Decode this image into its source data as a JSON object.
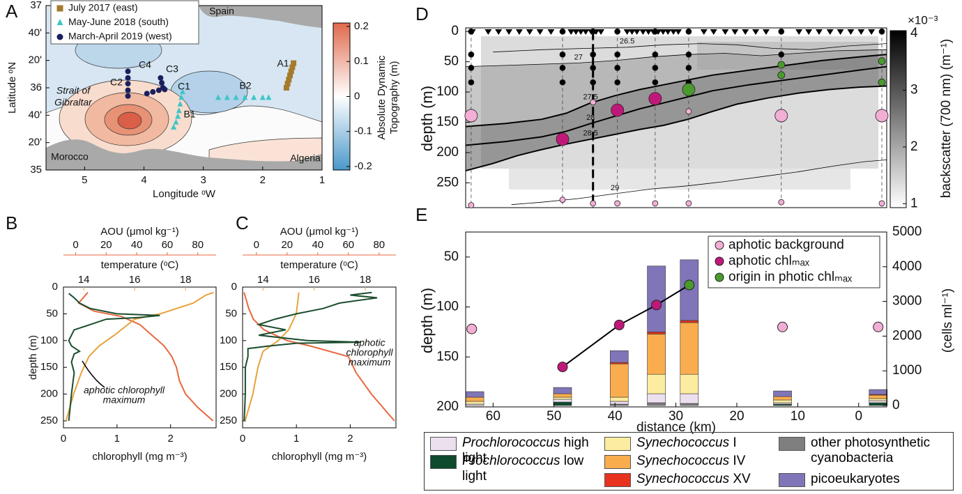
{
  "chart_data": [
    {
      "type": "map",
      "label": "A",
      "xlabel": "Longitude ᵒW",
      "ylabel": "Latitude ᵒN",
      "xlim": [
        5.65,
        1
      ],
      "ylim": [
        35,
        37
      ],
      "xticks": [
        5,
        4,
        3,
        2,
        1
      ],
      "yticks": [
        35,
        {
          "value": 35.3333,
          "label": "20'"
        },
        {
          "value": 35.6667,
          "label": "40'"
        },
        36,
        {
          "value": 36.3333,
          "label": "20'"
        },
        {
          "value": 36.6667,
          "label": "40'"
        },
        37
      ],
      "colorbar": {
        "label": [
          "Absolute Dynamic",
          "Topography (m)"
        ],
        "lim": [
          -0.21,
          0.21
        ],
        "ticks": [
          -0.2,
          -0.1,
          0,
          0.1,
          0.2
        ]
      },
      "places": [
        "Spain",
        "Morocco",
        "Algeria",
        "Strait of",
        "Gibraltar"
      ],
      "stations": [
        "A1",
        "B1",
        "B2",
        "C1",
        "C2",
        "C3",
        "C4"
      ],
      "series": [
        {
          "name": "July 2017 (east)",
          "color": "#a57a2c",
          "marker": "square",
          "x": [
            1.48,
            1.5,
            1.52,
            1.54,
            1.56,
            1.58,
            1.6
          ],
          "y": [
            36.3,
            36.25,
            36.2,
            36.15,
            36.1,
            36.05,
            36.0
          ]
        },
        {
          "name": "May-June 2018 (south)",
          "color": "#3cc6c8",
          "marker": "triangle",
          "x": [
            3.35,
            3.37,
            3.39,
            3.41,
            3.43,
            3.46,
            3.5,
            2.75,
            2.6,
            2.45,
            2.3,
            2.15,
            2.0,
            1.9
          ],
          "y": [
            35.95,
            35.88,
            35.8,
            35.72,
            35.65,
            35.58,
            35.52,
            35.88,
            35.88,
            35.88,
            35.88,
            35.88,
            35.88,
            35.88
          ]
        },
        {
          "name": "March-April 2019 (west)",
          "color": "#1a1f5e",
          "marker": "circle",
          "x": [
            4.27,
            4.27,
            4.27,
            4.27,
            4.27,
            3.95,
            3.85,
            3.75,
            3.65,
            3.72,
            3.7,
            3.68
          ],
          "y": [
            36.2,
            36.12,
            36.05,
            35.97,
            35.9,
            35.93,
            35.95,
            35.97,
            35.98,
            36.12,
            36.06,
            36.0
          ]
        }
      ]
    },
    {
      "type": "profile",
      "label": "B",
      "ylabel": "depth (m)",
      "ylim": [
        0,
        263
      ],
      "yticks": [
        0,
        50,
        100,
        150,
        200,
        250
      ],
      "xlabel": "chlorophyll (mg m⁻³)",
      "xlim": [
        0,
        2.85
      ],
      "xticks": [
        0,
        1,
        2
      ],
      "x2label": "temperature (ᵒC)",
      "x2lim": [
        13.2,
        19.2
      ],
      "x2ticks": [
        14,
        16,
        18
      ],
      "x3label": "AOU (μmol kg⁻¹)",
      "x3lim": [
        -8,
        92
      ],
      "x3ticks": [
        0,
        20,
        40,
        60,
        80
      ],
      "annotation": [
        "aphotic chlorophyll",
        "maximum"
      ],
      "series": [
        {
          "color": "#e8673e",
          "axis": "x3",
          "x": [
            8,
            2,
            12,
            30,
            42,
            50,
            58,
            63,
            66,
            68,
            72,
            80,
            90
          ],
          "y": [
            10,
            30,
            45,
            55,
            70,
            90,
            110,
            130,
            150,
            175,
            200,
            225,
            250
          ]
        },
        {
          "color": "#e8a23a",
          "axis": "x2",
          "x": [
            19.1,
            18.8,
            18.3,
            17.0,
            16.0,
            15.6,
            15.2,
            14.6,
            14.2,
            13.9,
            13.6,
            13.3
          ],
          "y": [
            10,
            15,
            30,
            50,
            60,
            75,
            90,
            110,
            130,
            160,
            200,
            250
          ]
        },
        {
          "color": "#1b4d2e",
          "axis": "x",
          "x": [
            0.1,
            0.2,
            0.3,
            0.5,
            1.0,
            1.8,
            1.4,
            0.8,
            0.5,
            0.2,
            0.15,
            0.1,
            0.15,
            0.3,
            0.2,
            0.15,
            0.2,
            0.15,
            0.1
          ],
          "y": [
            12,
            20,
            30,
            40,
            50,
            53,
            57,
            60,
            70,
            80,
            90,
            100,
            110,
            120,
            125,
            140,
            160,
            200,
            250
          ]
        }
      ]
    },
    {
      "type": "profile",
      "label": "C",
      "ylim": [
        0,
        263
      ],
      "yticks": [
        0,
        50,
        100,
        150,
        200,
        250
      ],
      "xlabel": "chlorophyll (mg m⁻³)",
      "xlim": [
        0,
        2.85
      ],
      "xticks": [
        0,
        1,
        2
      ],
      "x2label": "temperature (ᵒC)",
      "x2lim": [
        13.2,
        19.2
      ],
      "x2ticks": [
        14,
        16,
        18
      ],
      "x3label": "AOU (μmol kg⁻¹)",
      "x3lim": [
        -9,
        91
      ],
      "x3ticks": [
        0,
        20,
        40,
        60,
        80
      ],
      "annotation": [
        "aphotic",
        "chlorophyll",
        "maximum"
      ],
      "series": [
        {
          "color": "#e8673e",
          "axis": "x3",
          "x": [
            -8,
            -7,
            -5,
            -2,
            5,
            20,
            35,
            60,
            65,
            75,
            90
          ],
          "y": [
            10,
            20,
            40,
            60,
            80,
            100,
            110,
            130,
            160,
            200,
            250
          ]
        },
        {
          "color": "#e8a23a",
          "axis": "x2",
          "x": [
            15.4,
            15.3,
            15.0,
            14.6,
            14.0,
            13.8,
            13.6,
            13.3
          ],
          "y": [
            10,
            50,
            80,
            100,
            120,
            150,
            200,
            250
          ]
        },
        {
          "color": "#1b4d2e",
          "axis": "x",
          "x": [
            2.4,
            2.0,
            2.5,
            1.8,
            1.5,
            1.0,
            0.6,
            0.3,
            0.8,
            0.3,
            1.2,
            2.2,
            1.0,
            0.5,
            0.1,
            0.1,
            0.05,
            0.05,
            0.03
          ],
          "y": [
            10,
            15,
            20,
            30,
            40,
            50,
            60,
            70,
            80,
            90,
            100,
            103,
            105,
            110,
            115,
            130,
            150,
            200,
            250
          ]
        }
      ]
    },
    {
      "type": "section",
      "label": "D",
      "ylabel": "depth (m)",
      "xlim": [
        64.5,
        -4.6
      ],
      "ylim": [
        -6,
        291
      ],
      "yticks": [
        0,
        50,
        100,
        150,
        200,
        250
      ],
      "colorbar": {
        "label": "backscatter (700 nm) (m⁻¹)",
        "exponent": "×10⁻³",
        "lim": [
          0.93,
          4.05
        ],
        "ticks": [
          1,
          2,
          3,
          4
        ]
      },
      "profiles": [
        63.4,
        60.8,
        59.1,
        57.4,
        55.7,
        54.0,
        52.3,
        50.5,
        47.2,
        46.4,
        45.6,
        44.8,
        43.9,
        43.1,
        42.3,
        38.0,
        37.2,
        36.4,
        35.4,
        34.5,
        33.7,
        32.9,
        32.1,
        31.3,
        30.4,
        29.6,
        25.4,
        23.8,
        21.9,
        20.3,
        18.6,
        16.9,
        15.2,
        9.8,
        8.2,
        6.5,
        4.7,
        3.0,
        1.3,
        -0.4,
        -2.1
      ],
      "stations": [
        63.6,
        48.6,
        43.6,
        39.6,
        33.4,
        27.9,
        12.7,
        -3.8
      ],
      "highlight_station": 43.6,
      "contours": [
        {
          "level": 26.5,
          "bold": false,
          "x": [
            60,
            52,
            45,
            38,
            32,
            26,
            20,
            14,
            8,
            2,
            -4.6
          ],
          "y": [
            34,
            30,
            28,
            26,
            22,
            20,
            22,
            28,
            30,
            24,
            20
          ]
        },
        {
          "level": 27,
          "bold": false,
          "x": [
            64.5,
            58,
            52,
            46,
            40,
            34,
            28,
            22,
            16,
            10,
            4,
            -4.6
          ],
          "y": [
            58,
            56,
            54,
            52,
            48,
            42,
            38,
            36,
            40,
            36,
            32,
            30
          ]
        },
        {
          "level": 27.5,
          "bold": true,
          "x": [
            64.5,
            58,
            52,
            48,
            44,
            40,
            36,
            32,
            28,
            24,
            18,
            12,
            6,
            0,
            -4.6
          ],
          "y": [
            157,
            152,
            145,
            135,
            118,
            106,
            96,
            88,
            80,
            72,
            64,
            56,
            48,
            42,
            38
          ]
        },
        {
          "level": 28,
          "bold": true,
          "x": [
            64.5,
            58,
            52,
            48,
            44,
            40,
            36,
            32,
            28,
            24,
            18,
            12,
            6,
            0,
            -4.6
          ],
          "y": [
            188,
            182,
            174,
            165,
            152,
            140,
            128,
            118,
            108,
            98,
            88,
            80,
            72,
            64,
            58
          ]
        },
        {
          "level": 28.5,
          "bold": true,
          "x": [
            64.5,
            60,
            56,
            52,
            48,
            44,
            40,
            36,
            32,
            28,
            24,
            20,
            15,
            10,
            5,
            0,
            -4.6
          ],
          "y": [
            230,
            218,
            205,
            195,
            186,
            178,
            170,
            162,
            155,
            145,
            132,
            120,
            110,
            102,
            96,
            92,
            90
          ]
        },
        {
          "level": 29,
          "bold": false,
          "x": [
            57,
            52,
            46,
            40,
            34,
            28,
            22,
            16,
            10,
            4,
            -1,
            -4.6
          ],
          "y": [
            286,
            282,
            276,
            268,
            260,
            255,
            248,
            240,
            232,
            222,
            215,
            212
          ]
        }
      ],
      "samples": [
        {
          "color": "#000000",
          "size": 4,
          "x": [
            63.6,
            63.6,
            63.6,
            63.6,
            48.6,
            48.6,
            48.6,
            48.6,
            43.6,
            43.6,
            43.6,
            43.6,
            39.6,
            39.6,
            39.6,
            39.6,
            33.4,
            33.4,
            33.4,
            33.4,
            27.9,
            27.9,
            27.9,
            27.9,
            12.7,
            12.7,
            -3.8
          ],
          "y": [
            0,
            38,
            60,
            84,
            0,
            38,
            60,
            84,
            0,
            38,
            60,
            84,
            0,
            38,
            60,
            84,
            0,
            38,
            60,
            84,
            0,
            38,
            60,
            84,
            0,
            38,
            0
          ]
        },
        {
          "color": "#4a9a2e",
          "size": 5,
          "x": [
            12.7,
            12.7,
            -3.8,
            -3.8
          ],
          "y": [
            55,
            72,
            49,
            84
          ]
        },
        {
          "color": "#f2aed4",
          "size": 4,
          "x": [
            63.6,
            48.6,
            43.6,
            39.6,
            33.4,
            27.9,
            12.7,
            -3.8,
            43.6,
            27.9
          ],
          "y": [
            287,
            278,
            284,
            284,
            284,
            284,
            282,
            284,
            117,
            132
          ]
        },
        {
          "color": "#f2aed4",
          "size": 9,
          "x": [
            63.6,
            12.7,
            -3.8
          ],
          "y": [
            139,
            139,
            139
          ]
        },
        {
          "color": "#c0187a",
          "size": 9,
          "x": [
            48.6,
            39.6,
            33.4
          ],
          "y": [
            178,
            130,
            111
          ]
        },
        {
          "color": "#4a9a2e",
          "size": 9,
          "x": [
            27.9
          ],
          "y": [
            96
          ]
        }
      ]
    },
    {
      "type": "stacked_bar",
      "label": "E",
      "ylabel": "depth (m)",
      "y2label": "(cells ml⁻¹)",
      "xlabel": "distance (km)",
      "xlim": [
        64.5,
        -4.6
      ],
      "xticks": [
        60,
        50,
        40,
        30,
        20,
        10,
        0
      ],
      "ylim": [
        25,
        200
      ],
      "yticks": [
        50,
        100,
        150,
        200
      ],
      "y2lim": [
        -40,
        5000
      ],
      "y2ticks": [
        0,
        1000,
        2000,
        3000,
        4000,
        5000
      ],
      "x": [
        63.0,
        48.6,
        39.3,
        33.2,
        27.8,
        12.5,
        -3.2
      ],
      "series": [
        {
          "name": "other photosynthetic cyanobacteria",
          "color": "#7f7f7f",
          "italic_words": 0,
          "axis": "y2",
          "values": [
            0,
            0,
            40,
            80,
            60,
            0,
            0
          ]
        },
        {
          "name": "Prochlorococcus low light",
          "color": "#0d4a2e",
          "italic_words": 1,
          "axis": "y2",
          "values": [
            0,
            100,
            0,
            0,
            0,
            40,
            80
          ]
        },
        {
          "name": "Prochlorococcus high light",
          "color": "#ece0ef",
          "italic_words": 1,
          "axis": "y2",
          "values": [
            40,
            80,
            80,
            260,
            280,
            40,
            60
          ]
        },
        {
          "name": "Synechococcus I",
          "color": "#fcec9f",
          "italic_words": 1,
          "axis": "y2",
          "values": [
            80,
            60,
            120,
            560,
            560,
            80,
            60
          ]
        },
        {
          "name": "Synechococcus IV",
          "color": "#f9ad4e",
          "italic_words": 1,
          "axis": "y2",
          "values": [
            120,
            100,
            960,
            1160,
            1490,
            100,
            100
          ]
        },
        {
          "name": "Synechococcus XV",
          "color": "#e8321e",
          "italic_words": 1,
          "axis": "y2",
          "values": [
            0,
            0,
            40,
            60,
            60,
            0,
            20
          ]
        },
        {
          "name": "picoeukaryotes",
          "color": "#8075b8",
          "italic_words": 0,
          "axis": "y2",
          "values": [
            160,
            180,
            340,
            1900,
            1750,
            160,
            140
          ]
        }
      ],
      "line": {
        "color": "#000000",
        "x": [
          48.6,
          39.3,
          33.2,
          27.8
        ],
        "y": [
          160,
          118,
          98,
          78
        ]
      },
      "points": [
        {
          "name": "aphotic background",
          "color": "#f2aed4",
          "x": [
            63.5,
            12.5,
            -3.2
          ],
          "y": [
            122,
            120,
            120
          ]
        },
        {
          "name": "aphotic chlₘₐₓ",
          "color": "#c0187a",
          "x": [
            48.6,
            39.3,
            33.2
          ],
          "y": [
            160,
            118,
            98
          ]
        },
        {
          "name": "origin in photic chlₘₐₓ",
          "color": "#4a9a2e",
          "x": [
            27.8
          ],
          "y": [
            78
          ]
        }
      ]
    }
  ]
}
